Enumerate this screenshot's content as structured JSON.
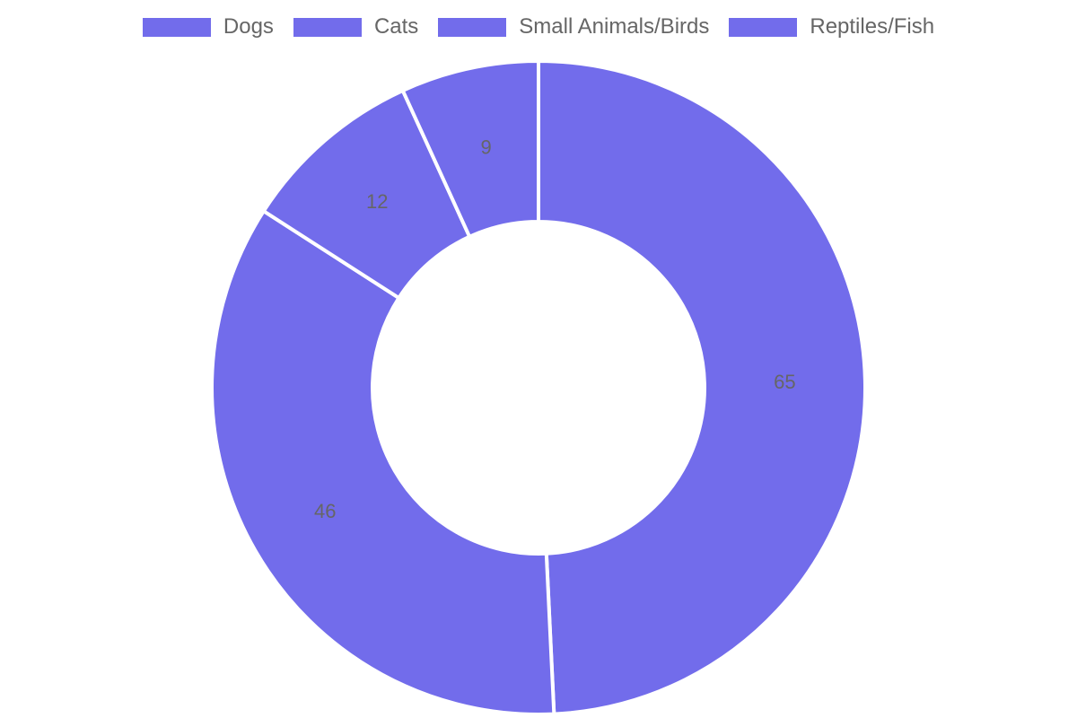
{
  "chart_data": {
    "type": "pie",
    "variant": "doughnut",
    "categories": [
      "Dogs",
      "Cats",
      "Small Animals/Birds",
      "Reptiles/Fish"
    ],
    "values": [
      65,
      46,
      12,
      9
    ],
    "series": [
      {
        "values": [
          65,
          46,
          12,
          9
        ]
      }
    ],
    "colors": [
      "#726ceb",
      "#726ceb",
      "#726ceb",
      "#726ceb"
    ],
    "border_color": "#ffffff",
    "label_color": "#666666",
    "legend_position": "top",
    "title": "",
    "xlabel": "",
    "ylabel": ""
  }
}
